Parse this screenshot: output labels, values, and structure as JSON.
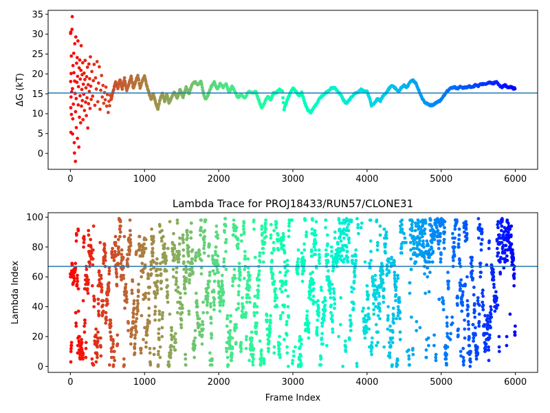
{
  "chart_data": [
    {
      "type": "scatter",
      "title": "",
      "xlabel": "",
      "ylabel": "ΔG (kT)",
      "xlim": [
        -300,
        6300
      ],
      "ylim": [
        -4,
        36
      ],
      "xticks": [
        0,
        1000,
        2000,
        3000,
        4000,
        5000,
        6000
      ],
      "yticks": [
        0,
        5,
        10,
        15,
        20,
        25,
        30,
        35
      ],
      "hline": 15.2,
      "hline_color": "#1f77b4",
      "colormap": "rainbow (red at start → violet at end)",
      "early_points": [
        [
          3,
          30.2
        ],
        [
          5,
          30.5
        ],
        [
          4,
          18.1
        ],
        [
          6,
          11.5
        ],
        [
          7,
          5.3
        ],
        [
          9,
          14.2
        ],
        [
          10,
          20.1
        ],
        [
          12,
          24.5
        ],
        [
          14,
          9.8
        ],
        [
          18,
          15.5
        ],
        [
          22,
          31.2
        ],
        [
          25,
          34.4
        ],
        [
          28,
          16.3
        ],
        [
          30,
          4.9
        ],
        [
          33,
          8.7
        ],
        [
          36,
          22.1
        ],
        [
          40,
          12.4
        ],
        [
          45,
          25.2
        ],
        [
          48,
          20.3
        ],
        [
          52,
          2.7
        ],
        [
          55,
          0.1
        ],
        [
          58,
          18.2
        ],
        [
          60,
          27.6
        ],
        [
          64,
          15.1
        ],
        [
          68,
          -2.0
        ],
        [
          70,
          10.5
        ],
        [
          74,
          29.3
        ],
        [
          78,
          13.8
        ],
        [
          80,
          6.5
        ],
        [
          84,
          22.7
        ],
        [
          88,
          17.9
        ],
        [
          92,
          24.1
        ],
        [
          95,
          3.8
        ],
        [
          98,
          19.4
        ],
        [
          102,
          28.3
        ],
        [
          106,
          12.2
        ],
        [
          110,
          16.8
        ],
        [
          114,
          1.6
        ],
        [
          118,
          21.5
        ],
        [
          122,
          9.1
        ],
        [
          126,
          23.5
        ],
        [
          130,
          14.5
        ],
        [
          134,
          18.7
        ],
        [
          138,
          7.7
        ],
        [
          142,
          20.9
        ],
        [
          146,
          27.1
        ],
        [
          150,
          11.9
        ],
        [
          154,
          16.1
        ],
        [
          158,
          19.8
        ],
        [
          162,
          13.3
        ],
        [
          166,
          22.8
        ],
        [
          170,
          8.5
        ],
        [
          175,
          17.4
        ],
        [
          180,
          14.9
        ],
        [
          185,
          20.2
        ],
        [
          190,
          10.8
        ],
        [
          195,
          18.6
        ],
        [
          200,
          23.4
        ],
        [
          205,
          12.9
        ],
        [
          210,
          16.5
        ],
        [
          215,
          9.5
        ],
        [
          220,
          19.3
        ],
        [
          225,
          14.0
        ],
        [
          230,
          21.7
        ],
        [
          235,
          6.4
        ],
        [
          240,
          17.3
        ],
        [
          245,
          12.5
        ],
        [
          250,
          22.5
        ],
        [
          255,
          15.6
        ],
        [
          260,
          18.8
        ],
        [
          265,
          11.3
        ],
        [
          270,
          24.3
        ],
        [
          275,
          16.9
        ],
        [
          280,
          13.6
        ],
        [
          290,
          20.6
        ],
        [
          300,
          14.4
        ],
        [
          310,
          18.3
        ],
        [
          320,
          22.4
        ],
        [
          330,
          12.1
        ],
        [
          340,
          19.0
        ],
        [
          350,
          16.2
        ],
        [
          360,
          23.1
        ],
        [
          370,
          13.0
        ],
        [
          380,
          17.7
        ],
        [
          390,
          21.8
        ],
        [
          400,
          11.1
        ],
        [
          410,
          15.9
        ],
        [
          420,
          19.6
        ],
        [
          430,
          14.2
        ],
        [
          440,
          17.1
        ],
        [
          450,
          12.6
        ],
        [
          460,
          15.3
        ],
        [
          470,
          13.5
        ],
        [
          480,
          16.7
        ],
        [
          490,
          11.9
        ],
        [
          500,
          14.8
        ],
        [
          510,
          10.3
        ],
        [
          520,
          13.1
        ],
        [
          530,
          12.0
        ],
        [
          540,
          14.6
        ],
        [
          550,
          13.8
        ]
      ],
      "trace_knots": [
        [
          550,
          13.5
        ],
        [
          580,
          15.8
        ],
        [
          610,
          17.9
        ],
        [
          640,
          16.4
        ],
        [
          670,
          18.6
        ],
        [
          700,
          16.2
        ],
        [
          730,
          18.9
        ],
        [
          760,
          15.8
        ],
        [
          790,
          17.5
        ],
        [
          820,
          19.3
        ],
        [
          850,
          16.4
        ],
        [
          880,
          18.1
        ],
        [
          910,
          19.7
        ],
        [
          940,
          16.5
        ],
        [
          970,
          18.2
        ],
        [
          1000,
          19.5
        ],
        [
          1030,
          17.0
        ],
        [
          1060,
          15.2
        ],
        [
          1090,
          13.5
        ],
        [
          1120,
          15.0
        ],
        [
          1150,
          12.6
        ],
        [
          1180,
          11.2
        ],
        [
          1210,
          13.6
        ],
        [
          1240,
          15.2
        ],
        [
          1270,
          13.0
        ],
        [
          1300,
          14.9
        ],
        [
          1330,
          12.6
        ],
        [
          1360,
          13.9
        ],
        [
          1400,
          15.5
        ],
        [
          1440,
          13.8
        ],
        [
          1480,
          16.1
        ],
        [
          1520,
          14.2
        ],
        [
          1560,
          16.6
        ],
        [
          1600,
          15.1
        ],
        [
          1640,
          17.3
        ],
        [
          1680,
          18.1
        ],
        [
          1720,
          17.2
        ],
        [
          1760,
          18.2
        ],
        [
          1790,
          15.5
        ],
        [
          1820,
          13.6
        ],
        [
          1860,
          14.8
        ],
        [
          1900,
          16.8
        ],
        [
          1940,
          17.9
        ],
        [
          1980,
          16.1
        ],
        [
          2020,
          17.5
        ],
        [
          2060,
          16.6
        ],
        [
          2100,
          17.6
        ],
        [
          2140,
          15.3
        ],
        [
          2180,
          16.9
        ],
        [
          2220,
          15.5
        ],
        [
          2260,
          14.0
        ],
        [
          2300,
          14.8
        ],
        [
          2350,
          13.9
        ],
        [
          2400,
          15.6
        ],
        [
          2450,
          15.1
        ],
        [
          2500,
          15.6
        ],
        [
          2540,
          13.4
        ],
        [
          2580,
          11.3
        ],
        [
          2620,
          12.9
        ],
        [
          2660,
          14.4
        ],
        [
          2700,
          13.6
        ],
        [
          2740,
          15.2
        ],
        [
          2780,
          15.4
        ],
        [
          2820,
          16.1
        ],
        [
          2860,
          15.7
        ],
        [
          2880,
          11.1
        ],
        [
          2920,
          13.2
        ],
        [
          2960,
          15.1
        ],
        [
          3000,
          16.4
        ],
        [
          3040,
          15.7
        ],
        [
          3080,
          14.4
        ],
        [
          3120,
          15.3
        ],
        [
          3160,
          12.8
        ],
        [
          3200,
          11.0
        ],
        [
          3240,
          10.3
        ],
        [
          3280,
          11.4
        ],
        [
          3320,
          12.5
        ],
        [
          3360,
          13.8
        ],
        [
          3400,
          14.6
        ],
        [
          3440,
          15.2
        ],
        [
          3480,
          15.8
        ],
        [
          3520,
          16.4
        ],
        [
          3560,
          16.6
        ],
        [
          3600,
          15.7
        ],
        [
          3640,
          14.9
        ],
        [
          3680,
          13.5
        ],
        [
          3720,
          12.5
        ],
        [
          3760,
          13.4
        ],
        [
          3800,
          14.4
        ],
        [
          3840,
          15.2
        ],
        [
          3880,
          15.4
        ],
        [
          3920,
          16.1
        ],
        [
          3960,
          15.6
        ],
        [
          4000,
          15.5
        ],
        [
          4030,
          14.1
        ],
        [
          4060,
          12.0
        ],
        [
          4100,
          12.6
        ],
        [
          4140,
          13.7
        ],
        [
          4180,
          13.2
        ],
        [
          4220,
          14.6
        ],
        [
          4260,
          15.3
        ],
        [
          4300,
          16.4
        ],
        [
          4340,
          17.1
        ],
        [
          4380,
          16.4
        ],
        [
          4420,
          15.5
        ],
        [
          4460,
          16.5
        ],
        [
          4500,
          17.1
        ],
        [
          4540,
          16.6
        ],
        [
          4580,
          17.9
        ],
        [
          4620,
          18.5
        ],
        [
          4660,
          17.6
        ],
        [
          4700,
          15.8
        ],
        [
          4740,
          14.0
        ],
        [
          4780,
          12.8
        ],
        [
          4820,
          12.4
        ],
        [
          4860,
          12.1
        ],
        [
          4900,
          12.3
        ],
        [
          4940,
          12.9
        ],
        [
          4980,
          13.2
        ],
        [
          5020,
          14.0
        ],
        [
          5060,
          15.3
        ],
        [
          5100,
          16.1
        ],
        [
          5140,
          16.5
        ],
        [
          5180,
          16.7
        ],
        [
          5220,
          16.3
        ],
        [
          5260,
          16.8
        ],
        [
          5300,
          16.5
        ],
        [
          5340,
          16.6
        ],
        [
          5380,
          16.9
        ],
        [
          5420,
          16.6
        ],
        [
          5460,
          17.2
        ],
        [
          5500,
          17.0
        ],
        [
          5540,
          17.5
        ],
        [
          5580,
          17.4
        ],
        [
          5620,
          17.7
        ],
        [
          5660,
          17.9
        ],
        [
          5700,
          17.6
        ],
        [
          5740,
          18.0
        ],
        [
          5780,
          17.1
        ],
        [
          5820,
          16.7
        ],
        [
          5860,
          17.2
        ],
        [
          5900,
          16.5
        ],
        [
          5940,
          16.8
        ],
        [
          5970,
          16.3
        ],
        [
          6000,
          16.4
        ]
      ]
    },
    {
      "type": "scatter",
      "title": "Lambda Trace for PROJ18433/RUN57/CLONE31",
      "xlabel": "Frame Index",
      "ylabel": "Lambda Index",
      "xlim": [
        -300,
        6300
      ],
      "ylim": [
        -4,
        103
      ],
      "xticks": [
        0,
        1000,
        2000,
        3000,
        4000,
        5000,
        6000
      ],
      "yticks": [
        0,
        20,
        40,
        60,
        80,
        100
      ],
      "hline": 67,
      "hline_color": "#1f77b4",
      "colormap": "rainbow (red at start → violet at end)",
      "n_points": 6000,
      "dense_high_bands": [
        [
          3600,
          3750
        ],
        [
          4600,
          4900
        ],
        [
          5750,
          5950
        ]
      ],
      "sparse_gaps": [
        [
          2950,
          3050
        ],
        [
          3850,
          3950
        ],
        [
          4480,
          4560
        ],
        [
          5100,
          5150
        ]
      ]
    }
  ]
}
